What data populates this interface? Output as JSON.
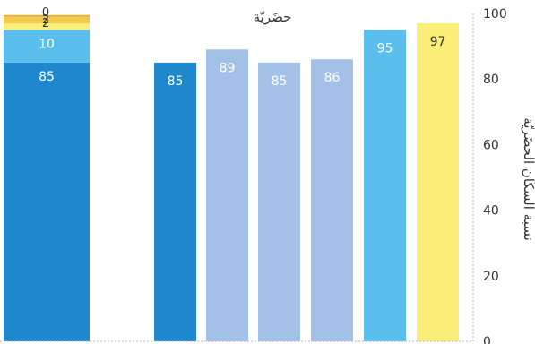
{
  "chart_data": {
    "type": "bar",
    "title": "حضَريّة",
    "ylabel": "نسبة السكّان الحضَريّة",
    "ylim": [
      0,
      100
    ],
    "yticks": [
      0,
      20,
      40,
      60,
      80,
      100
    ],
    "grid": false,
    "colors": {
      "dark_blue": "#1f88cc",
      "light_blue": "#a3c1e6",
      "sky_blue": "#5bbfee",
      "yellow": "#fbee79",
      "gold": "#f3c94e",
      "orange": "#f0a92e",
      "axis": "#b3b3b3",
      "text": "#333333"
    },
    "stacked_bar": {
      "segments": [
        {
          "value": 85,
          "label": "85",
          "color": "#1f88cc"
        },
        {
          "value": 10,
          "label": "10",
          "color": "#5bbfee"
        },
        {
          "value": 2,
          "label": "2",
          "color": "#fbee79"
        },
        {
          "value": 2,
          "label": "2",
          "color": "#f3c94e"
        },
        {
          "value": 0.5,
          "label": "0",
          "color": "#f0a92e"
        }
      ]
    },
    "bars": [
      {
        "value": 85,
        "label": "85",
        "color": "#1f88cc"
      },
      {
        "value": 89,
        "label": "89",
        "color": "#a3c1e6"
      },
      {
        "value": 85,
        "label": "85",
        "color": "#a3c1e6"
      },
      {
        "value": 86,
        "label": "86",
        "color": "#a3c1e6"
      },
      {
        "value": 95,
        "label": "95",
        "color": "#5bbfee"
      },
      {
        "value": 97,
        "label": "97",
        "color": "#fbee79"
      }
    ]
  }
}
